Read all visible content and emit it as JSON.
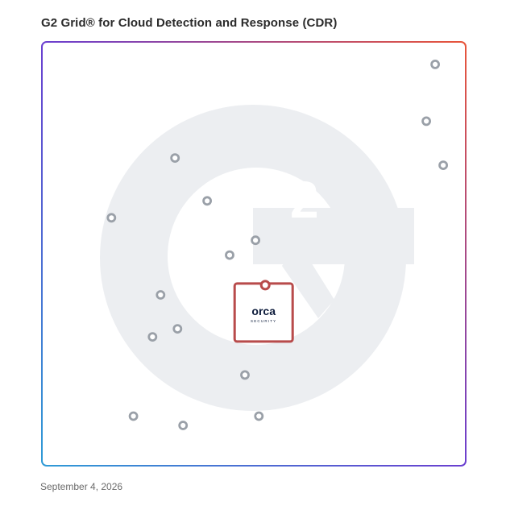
{
  "header": {
    "title": "G2 Grid® for Cloud Detection and Response (CDR)"
  },
  "footer": {
    "date": "September 4, 2026"
  },
  "colors": {
    "grid_gradient": [
      "#2f9bd6",
      "#6a3fd0",
      "#e8553a"
    ],
    "point": "#9aa0a8",
    "highlight": "#b84b4b",
    "watermark": "#eceef1"
  },
  "highlight_logo": {
    "name": "orca",
    "tagline": "SECURITY"
  },
  "chart_data": {
    "type": "scatter",
    "title": "G2 Grid® for Cloud Detection and Response (CDR)",
    "xlim": [
      0,
      100
    ],
    "ylim": [
      0,
      100
    ],
    "quadrants": true,
    "points": [
      {
        "x": 92.8,
        "y": 94.7
      },
      {
        "x": 90.7,
        "y": 81.3
      },
      {
        "x": 94.7,
        "y": 70.9
      },
      {
        "x": 31.4,
        "y": 72.6
      },
      {
        "x": 39.0,
        "y": 62.5
      },
      {
        "x": 16.4,
        "y": 58.5
      },
      {
        "x": 50.4,
        "y": 53.2
      },
      {
        "x": 44.3,
        "y": 49.7
      },
      {
        "x": 28.0,
        "y": 40.3
      },
      {
        "x": 32.0,
        "y": 32.3
      },
      {
        "x": 26.1,
        "y": 30.4
      },
      {
        "x": 47.9,
        "y": 21.4
      },
      {
        "x": 21.6,
        "y": 11.7
      },
      {
        "x": 33.3,
        "y": 9.5
      },
      {
        "x": 51.2,
        "y": 11.7
      }
    ],
    "highlight": {
      "x": 52.7,
      "y": 42.6,
      "label": "orca"
    }
  }
}
